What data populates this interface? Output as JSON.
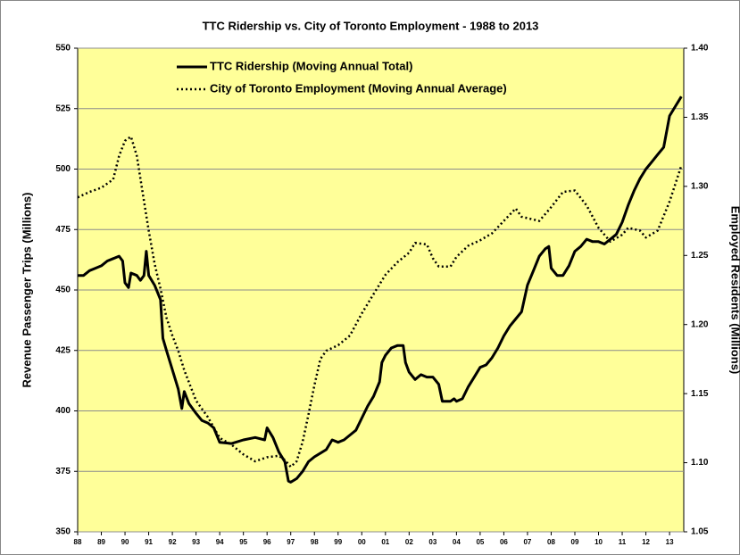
{
  "chart_data": {
    "type": "line",
    "title": "TTC Ridership vs. City of Toronto Employment - 1988 to 2013",
    "ylabel": "Revenue Passenger Trips (Millions)",
    "y2label": "Employed Residents (Millions)",
    "xlim": [
      1988,
      2013.6
    ],
    "xticks": [
      {
        "value": 1988,
        "label": "88"
      },
      {
        "value": 1989,
        "label": "89"
      },
      {
        "value": 1990,
        "label": "90"
      },
      {
        "value": 1991,
        "label": "91"
      },
      {
        "value": 1992,
        "label": "92"
      },
      {
        "value": 1993,
        "label": "93"
      },
      {
        "value": 1994,
        "label": "94"
      },
      {
        "value": 1995,
        "label": "95"
      },
      {
        "value": 1996,
        "label": "96"
      },
      {
        "value": 1997,
        "label": "97"
      },
      {
        "value": 1998,
        "label": "98"
      },
      {
        "value": 1999,
        "label": "99"
      },
      {
        "value": 2000,
        "label": "00"
      },
      {
        "value": 2001,
        "label": "01"
      },
      {
        "value": 2002,
        "label": "02"
      },
      {
        "value": 2003,
        "label": "03"
      },
      {
        "value": 2004,
        "label": "04"
      },
      {
        "value": 2005,
        "label": "05"
      },
      {
        "value": 2006,
        "label": "06"
      },
      {
        "value": 2007,
        "label": "07"
      },
      {
        "value": 2008,
        "label": "08"
      },
      {
        "value": 2009,
        "label": "09"
      },
      {
        "value": 2010,
        "label": "10"
      },
      {
        "value": 2011,
        "label": "11"
      },
      {
        "value": 2012,
        "label": "12"
      },
      {
        "value": 2013,
        "label": "13"
      }
    ],
    "ylim": [
      350,
      550
    ],
    "yticks": [
      350,
      375,
      400,
      425,
      450,
      475,
      500,
      525,
      550
    ],
    "y2lim": [
      1.05,
      1.4
    ],
    "y2ticks": [
      1.05,
      {
        "value": 1.1,
        "label": "1.10"
      },
      1.15,
      {
        "value": 1.2,
        "label": "1.20"
      },
      1.25,
      {
        "value": 1.3,
        "label": "1.30"
      },
      1.35,
      {
        "value": 1.4,
        "label": "1.40"
      }
    ],
    "grid": true,
    "background": "#ffff99",
    "legend": "upper left",
    "series": [
      {
        "name": "TTC Ridership (Moving Annual Total)",
        "color": "#000000",
        "line_style": "solid",
        "x": [
          1988.0,
          1988.25,
          1988.5,
          1988.75,
          1989.0,
          1989.25,
          1989.5,
          1989.75,
          1989.9,
          1990.0,
          1990.15,
          1990.25,
          1990.5,
          1990.65,
          1990.8,
          1990.9,
          1991.0,
          1991.25,
          1991.5,
          1991.6,
          1991.75,
          1992.0,
          1992.25,
          1992.4,
          1992.5,
          1992.7,
          1993.0,
          1993.25,
          1993.5,
          1993.75,
          1994.0,
          1994.5,
          1995.0,
          1995.5,
          1995.9,
          1996.0,
          1996.25,
          1996.5,
          1996.75,
          1996.9,
          1997.0,
          1997.25,
          1997.5,
          1997.75,
          1998.0,
          1998.5,
          1998.75,
          1999.0,
          1999.25,
          1999.5,
          1999.75,
          2000.0,
          2000.25,
          2000.5,
          2000.75,
          2000.85,
          2001.0,
          2001.25,
          2001.5,
          2001.75,
          2001.85,
          2002.0,
          2002.25,
          2002.5,
          2002.75,
          2003.0,
          2003.25,
          2003.4,
          2003.75,
          2003.9,
          2004.0,
          2004.25,
          2004.5,
          2004.75,
          2005.0,
          2005.25,
          2005.5,
          2005.75,
          2006.0,
          2006.25,
          2006.5,
          2006.75,
          2007.0,
          2007.25,
          2007.5,
          2007.75,
          2007.9,
          2008.0,
          2008.25,
          2008.5,
          2008.75,
          2009.0,
          2009.25,
          2009.5,
          2009.75,
          2010.0,
          2010.25,
          2010.5,
          2010.75,
          2011.0,
          2011.25,
          2011.5,
          2011.75,
          2012.0,
          2012.25,
          2012.5,
          2012.75,
          2013.0,
          2013.25,
          2013.5
        ],
        "values": [
          456,
          456,
          458,
          459,
          460,
          462,
          463,
          464,
          462,
          453,
          451,
          457,
          456,
          454,
          456,
          466,
          456,
          452,
          446,
          430,
          425,
          417,
          409,
          401,
          408,
          403,
          399,
          396,
          395,
          393,
          387,
          386.5,
          388,
          389,
          388,
          393,
          389,
          383,
          379,
          371,
          370.5,
          372,
          375,
          379,
          381,
          384,
          388,
          387,
          388,
          390,
          392,
          397,
          402,
          406,
          412,
          420,
          423,
          426,
          427,
          427,
          420,
          416,
          413,
          415,
          414,
          414,
          411,
          404,
          404,
          405,
          404,
          405,
          410,
          414,
          418,
          419,
          422,
          426,
          431,
          435,
          438,
          441,
          452,
          458,
          464,
          467,
          468,
          459,
          456,
          456,
          460,
          466,
          468,
          471,
          470,
          470,
          469,
          471,
          473,
          478,
          485,
          491,
          496,
          500,
          503,
          506,
          509,
          522,
          526,
          530
        ]
      },
      {
        "name": "City of Toronto Employment (Moving Annual Average)",
        "color": "#000000",
        "line_style": "dotted",
        "axis": "y2",
        "x": [
          1988.0,
          1988.5,
          1989.0,
          1989.5,
          1989.75,
          1990.0,
          1990.25,
          1990.5,
          1990.75,
          1991.0,
          1991.25,
          1991.5,
          1991.75,
          1992.0,
          1992.25,
          1992.5,
          1992.75,
          1993.0,
          1993.25,
          1993.5,
          1994.0,
          1994.5,
          1995.0,
          1995.5,
          1996.0,
          1996.5,
          1996.75,
          1997.0,
          1997.25,
          1997.5,
          1997.75,
          1998.0,
          1998.25,
          1998.5,
          1999.0,
          1999.5,
          2000.0,
          2000.5,
          2001.0,
          2001.5,
          2002.0,
          2002.25,
          2002.75,
          2003.0,
          2003.25,
          2003.75,
          2004.0,
          2004.5,
          2005.0,
          2005.5,
          2006.0,
          2006.5,
          2006.75,
          2007.0,
          2007.5,
          2008.0,
          2008.5,
          2009.0,
          2009.5,
          2010.0,
          2010.5,
          2011.0,
          2011.25,
          2011.75,
          2012.0,
          2012.5,
          2013.0,
          2013.5
        ],
        "values": [
          1.292,
          1.296,
          1.299,
          1.305,
          1.322,
          1.333,
          1.336,
          1.322,
          1.295,
          1.268,
          1.244,
          1.226,
          1.205,
          1.192,
          1.181,
          1.167,
          1.156,
          1.145,
          1.139,
          1.133,
          1.118,
          1.113,
          1.106,
          1.101,
          1.104,
          1.105,
          1.102,
          1.097,
          1.101,
          1.115,
          1.135,
          1.156,
          1.175,
          1.181,
          1.185,
          1.192,
          1.208,
          1.222,
          1.236,
          1.245,
          1.252,
          1.259,
          1.258,
          1.248,
          1.242,
          1.242,
          1.249,
          1.257,
          1.261,
          1.266,
          1.275,
          1.284,
          1.278,
          1.277,
          1.275,
          1.285,
          1.296,
          1.297,
          1.286,
          1.27,
          1.26,
          1.265,
          1.27,
          1.268,
          1.263,
          1.268,
          1.289,
          1.315
        ]
      }
    ]
  }
}
